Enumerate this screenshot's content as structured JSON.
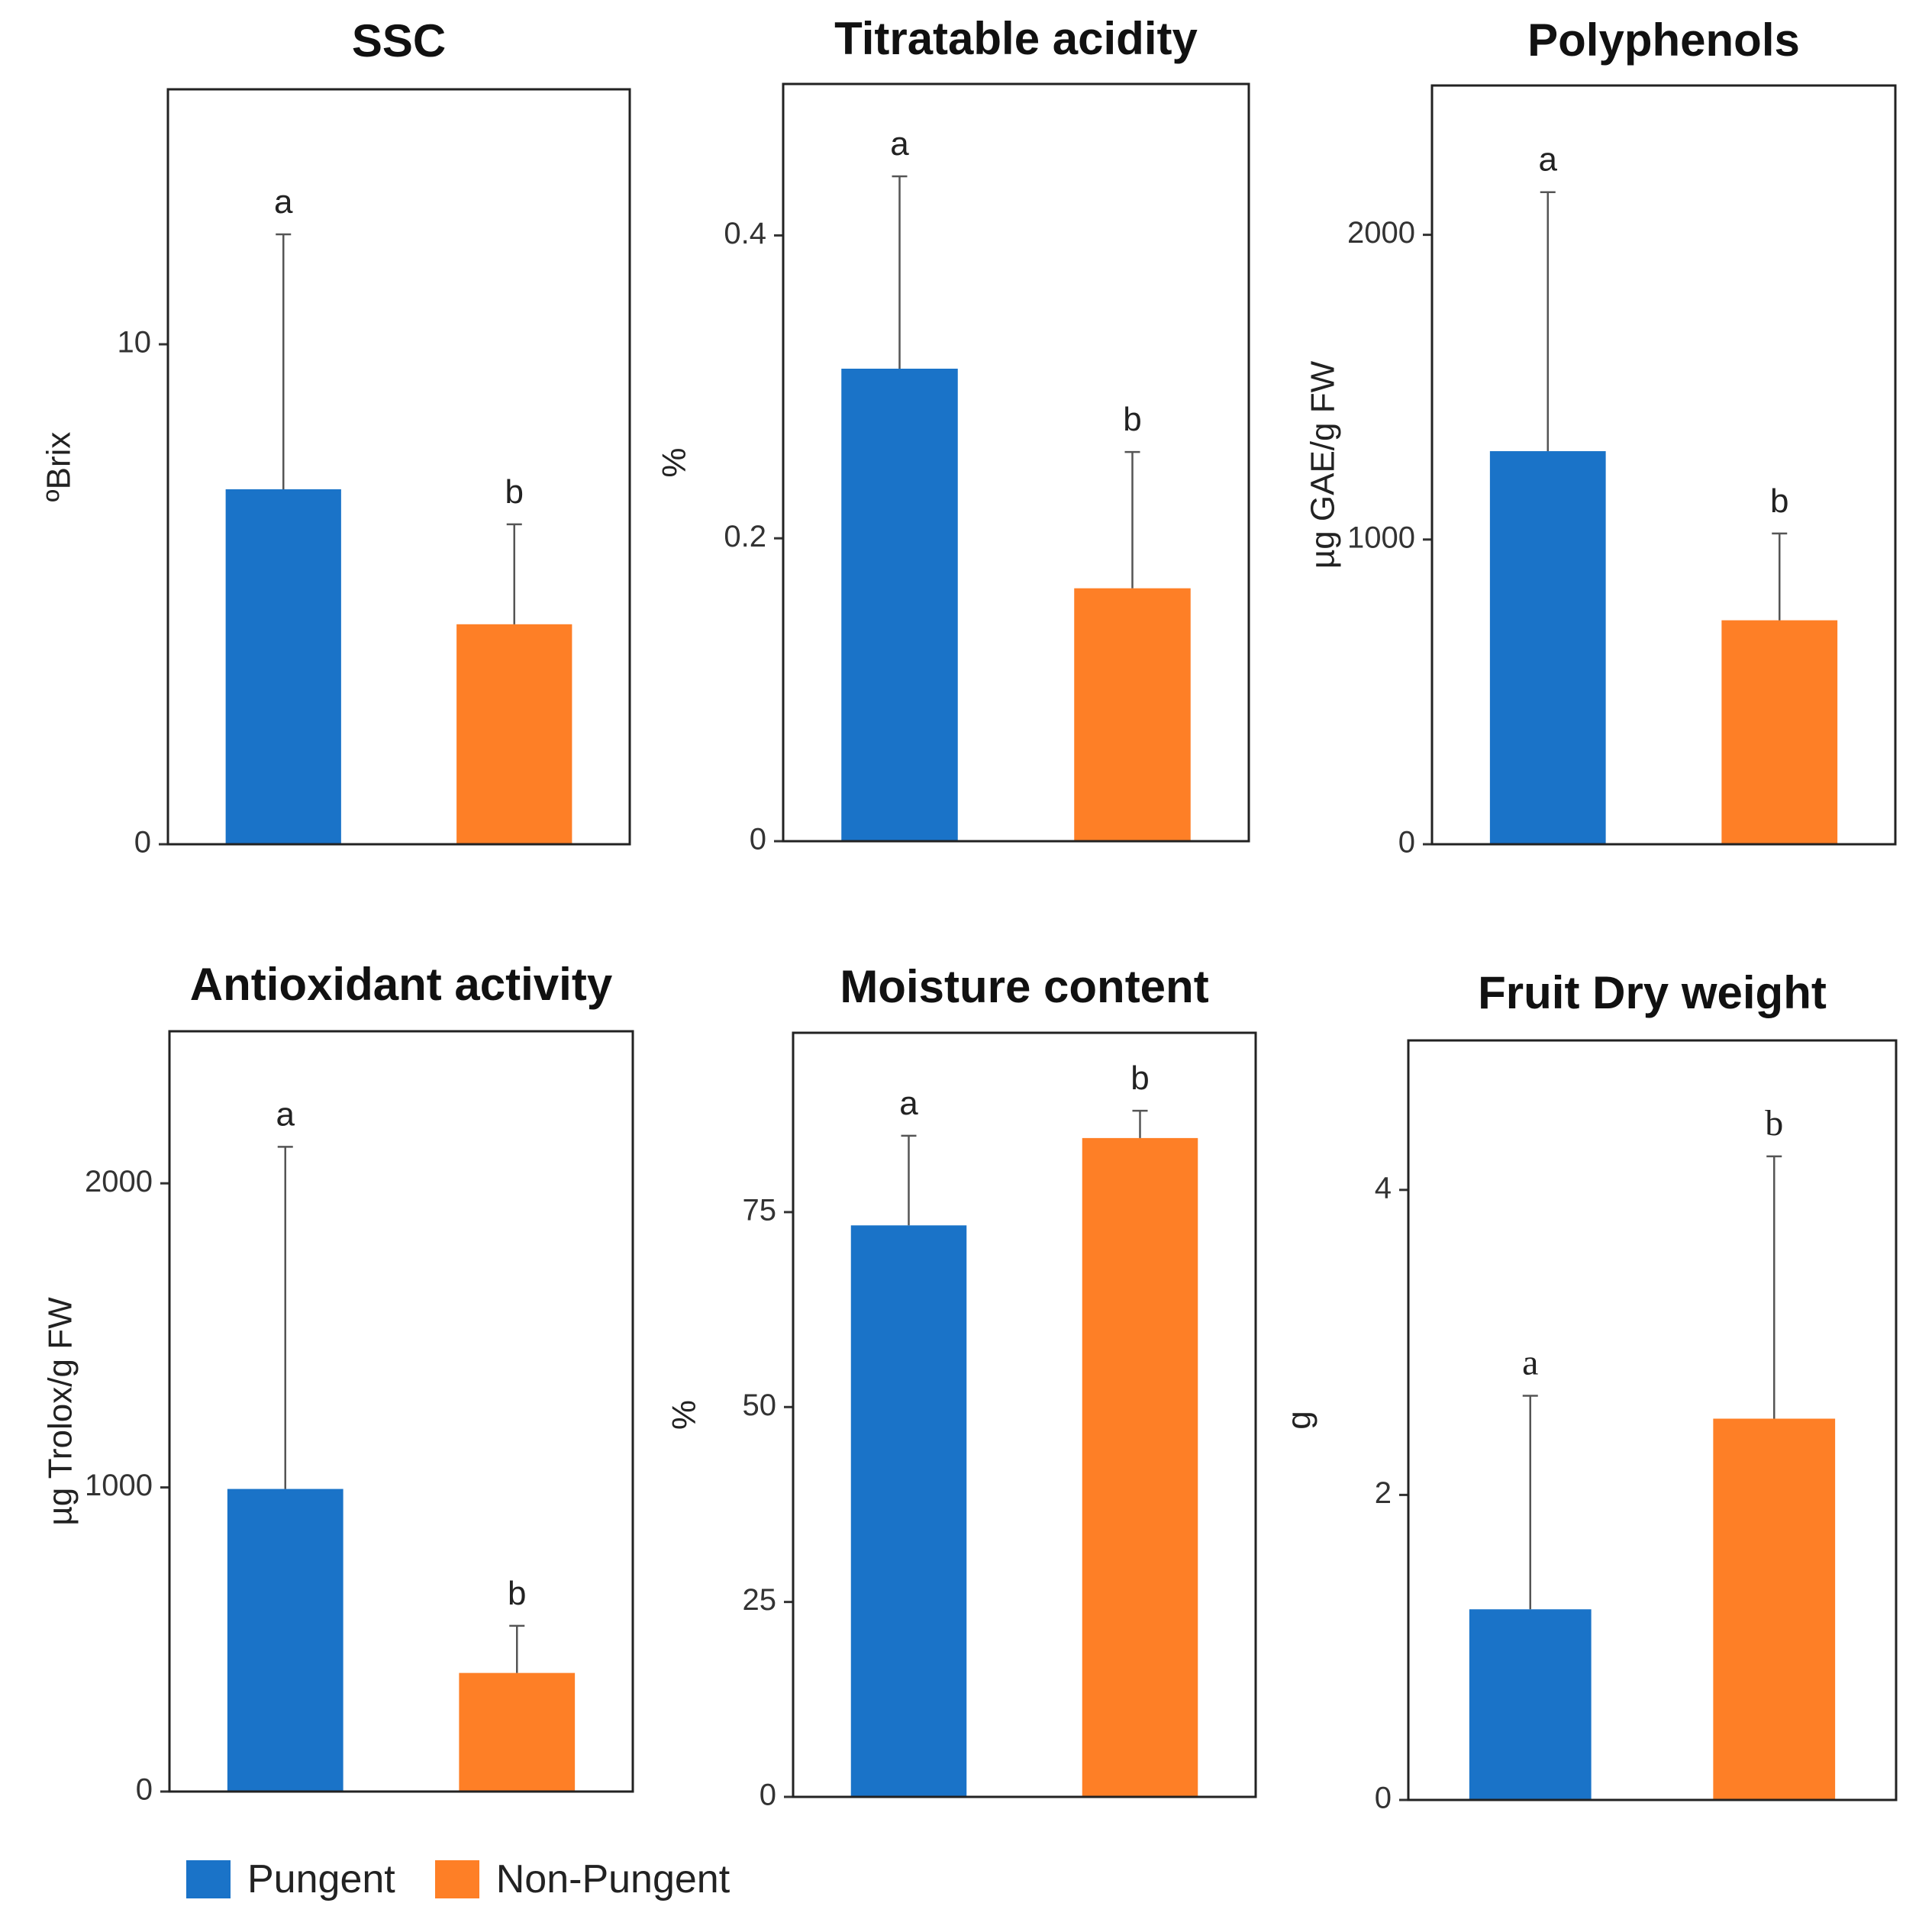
{
  "colors": {
    "Pungent": "#1a73c8",
    "Non-Pungent": "#fe7f26"
  },
  "legend": {
    "items": [
      {
        "name": "Pungent"
      },
      {
        "name": "Non-Pungent"
      }
    ]
  },
  "chart_data": [
    {
      "type": "bar",
      "title": "SSC",
      "ylabel": "ºBrix",
      "categories": [
        "Pungent",
        "Non-Pungent"
      ],
      "values": [
        7.1,
        4.4
      ],
      "errors": [
        5.1,
        2.0
      ],
      "letters": [
        "a",
        "b"
      ],
      "ylim": [
        0,
        15.1
      ],
      "yticks": [
        0,
        10
      ],
      "tick_labels": [
        "0",
        "10"
      ],
      "letter_font": "sans"
    },
    {
      "type": "bar",
      "title": "Titratable acidity",
      "ylabel": "%",
      "categories": [
        "Pungent",
        "Non-Pungent"
      ],
      "values": [
        0.312,
        0.167
      ],
      "errors": [
        0.127,
        0.09
      ],
      "letters": [
        "a",
        "b"
      ],
      "ylim": [
        0,
        0.5
      ],
      "yticks": [
        0,
        0.2,
        0.4
      ],
      "tick_labels": [
        "0",
        "0.2",
        "0.4"
      ],
      "letter_font": "sans"
    },
    {
      "type": "bar",
      "title": "Polyphenols",
      "ylabel": "µg GAE/g FW",
      "categories": [
        "Pungent",
        "Non-Pungent"
      ],
      "values": [
        1290,
        735
      ],
      "errors": [
        850,
        285
      ],
      "letters": [
        "a",
        "b"
      ],
      "ylim": [
        0,
        2490
      ],
      "yticks": [
        0,
        1000,
        2000
      ],
      "tick_labels": [
        "0",
        "1000",
        "2000"
      ],
      "letter_font": "sans"
    },
    {
      "type": "bar",
      "title": "Antioxidant activity",
      "ylabel": "µg Trolox/g FW",
      "categories": [
        "Pungent",
        "Non-Pungent"
      ],
      "values": [
        995,
        390
      ],
      "errors": [
        1125,
        155
      ],
      "letters": [
        "a",
        "b"
      ],
      "ylim": [
        0,
        2500
      ],
      "yticks": [
        0,
        1000,
        2000
      ],
      "tick_labels": [
        "0",
        "1000",
        "2000"
      ],
      "letter_font": "sans"
    },
    {
      "type": "bar",
      "title": "Moisture content",
      "ylabel": "%",
      "categories": [
        "Pungent",
        "Non-Pungent"
      ],
      "values": [
        73.3,
        84.5
      ],
      "errors": [
        11.5,
        3.5
      ],
      "letters": [
        "a",
        "b"
      ],
      "ylim": [
        0,
        98
      ],
      "yticks": [
        0,
        25,
        50,
        75
      ],
      "tick_labels": [
        "0",
        "25",
        "50",
        "75"
      ],
      "letter_font": "sans"
    },
    {
      "type": "bar",
      "title": "Fruit Dry weight",
      "ylabel": "g",
      "categories": [
        "Pungent",
        "Non-Pungent"
      ],
      "values": [
        1.25,
        2.5
      ],
      "errors": [
        1.4,
        1.72
      ],
      "letters": [
        "a",
        "b"
      ],
      "ylim": [
        0,
        4.98
      ],
      "yticks": [
        0,
        2,
        4
      ],
      "tick_labels": [
        "0",
        "2",
        "4"
      ],
      "letter_font": "serif"
    }
  ]
}
